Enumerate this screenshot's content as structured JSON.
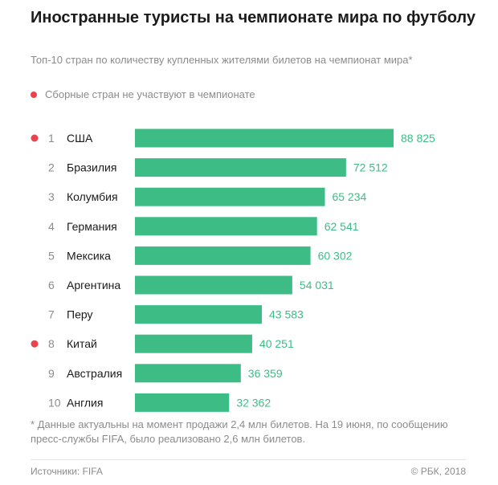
{
  "title": "Иностранные туристы на чемпионате мира по футболу",
  "subtitle": "Топ-10 стран по количеству купленных жителями билетов на чемпионат мира*",
  "legend": {
    "label": "Сборные стран не участвуют в чемпионате",
    "dot_color": "#e8434f"
  },
  "colors": {
    "bar": "#3dbd85",
    "value_text": "#3dbd85",
    "rank_text": "#8c8c8c",
    "country_text": "#1a1a1a",
    "marker": "#e8434f"
  },
  "chart_data": {
    "type": "bar",
    "orientation": "horizontal",
    "title": "Иностранные туристы на чемпионате мира по футболу",
    "ranks": [
      "1",
      "2",
      "3",
      "4",
      "5",
      "6",
      "7",
      "8",
      "9",
      "10"
    ],
    "categories": [
      "США",
      "Бразилия",
      "Колумбия",
      "Германия",
      "Мексика",
      "Аргентина",
      "Перу",
      "Китай",
      "Австралия",
      "Англия"
    ],
    "values": [
      88825,
      72512,
      65234,
      62541,
      60302,
      54031,
      43583,
      40251,
      36359,
      32362
    ],
    "value_labels": [
      "88 825",
      "72 512",
      "65 234",
      "62 541",
      "60 302",
      "54 031",
      "43 583",
      "40 251",
      "36 359",
      "32 362"
    ],
    "not_participating": [
      true,
      false,
      false,
      false,
      false,
      false,
      false,
      true,
      false,
      false
    ],
    "xlim": [
      0,
      88825
    ],
    "grid": false,
    "legend_position": "top-left"
  },
  "footnote": "* Данные актуальны на момент продажи 2,4 млн билетов. На 19 июня, по сообщению пресс-службы FIFA, было реализовано 2,6 млн билетов.",
  "footer": {
    "source": "Источники: FIFA",
    "copyright": "© РБК, 2018"
  }
}
